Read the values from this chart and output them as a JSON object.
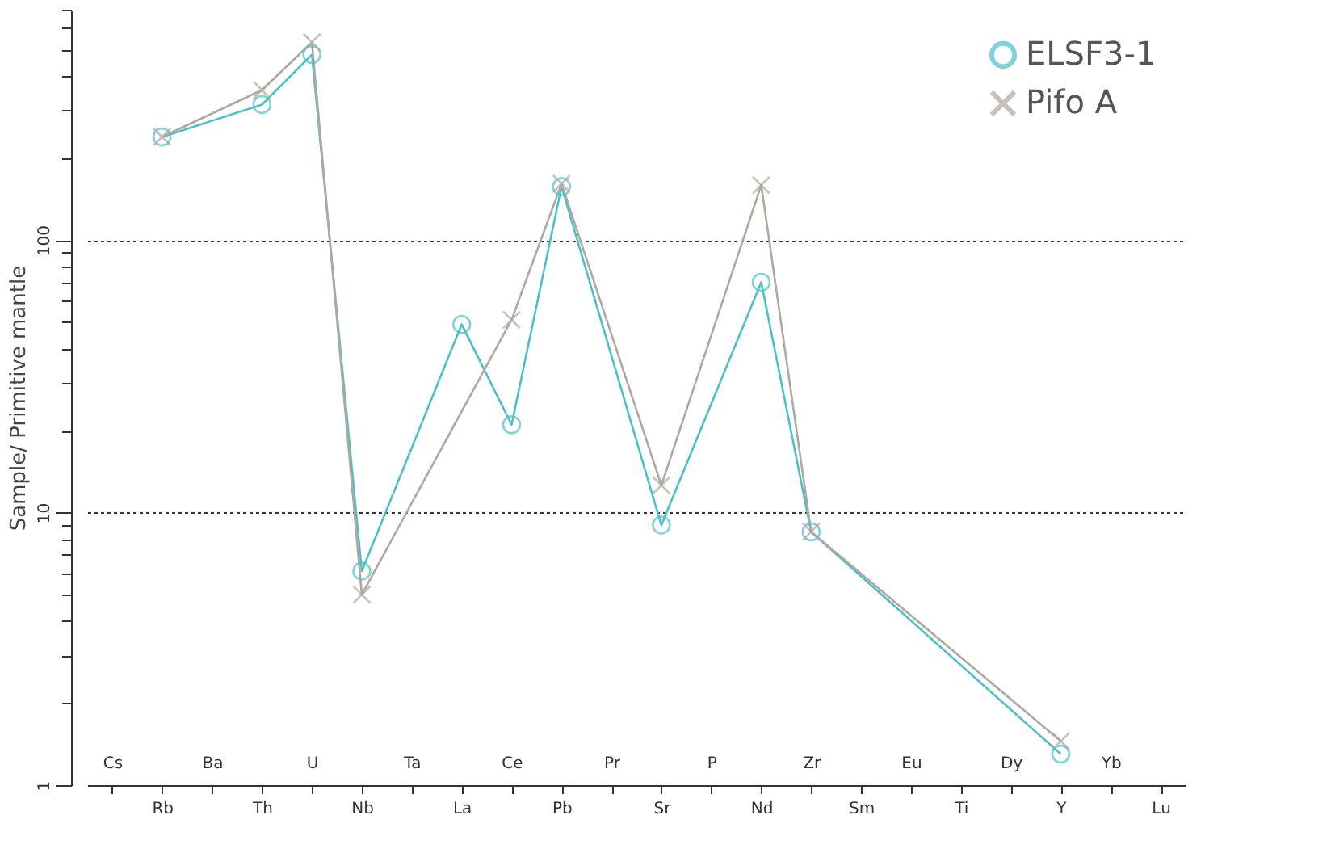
{
  "chart_data": {
    "type": "line",
    "ylabel": "Sample/ Primitive mantle",
    "log": "y",
    "ylim": [
      1,
      700
    ],
    "yticks": [
      1,
      {
        "value": 2,
        "label": null
      },
      {
        "value": 3,
        "label": null
      },
      {
        "value": 4,
        "label": null
      },
      {
        "value": 5,
        "label": null
      },
      {
        "value": 6,
        "label": null
      },
      {
        "value": 7,
        "label": null
      },
      {
        "value": 8,
        "label": null
      },
      {
        "value": 9,
        "label": null
      },
      10,
      {
        "value": 20,
        "label": null
      },
      {
        "value": 30,
        "label": null
      },
      {
        "value": 40,
        "label": null
      },
      {
        "value": 50,
        "label": null
      },
      {
        "value": 60,
        "label": null
      },
      {
        "value": 70,
        "label": null
      },
      {
        "value": 80,
        "label": null
      },
      {
        "value": 90,
        "label": null
      },
      100,
      {
        "value": 200,
        "label": null
      },
      {
        "value": 300,
        "label": null
      },
      {
        "value": 400,
        "label": null
      },
      {
        "value": 500,
        "label": null
      },
      {
        "value": 600,
        "label": null
      },
      {
        "value": 700,
        "label": null
      }
    ],
    "grid": "y",
    "legend": "top right",
    "categories": [
      "Cs",
      "Rb",
      "Ba",
      "Th",
      "U",
      "Nb",
      "Ta",
      "La",
      "Ce",
      "Pb",
      "Pr",
      "Sr",
      "P",
      "Nd",
      "Zr",
      "Sm",
      "Eu",
      "Ti",
      "Dy",
      "Y",
      "Yb",
      "Lu"
    ],
    "series": [
      {
        "name": "ELSF3-1",
        "color": "#4cc0c8",
        "marker": "circle",
        "values": [
          null,
          239,
          null,
          314,
          479,
          6.1,
          null,
          49,
          21,
          157,
          null,
          9.0,
          null,
          70,
          8.5,
          null,
          null,
          null,
          null,
          1.3,
          null,
          null
        ]
      },
      {
        "name": "Pifo A",
        "color": "#b0a8a0",
        "marker": "cross",
        "values": [
          null,
          239,
          null,
          355,
          532,
          5.0,
          null,
          null,
          51,
          161,
          null,
          12.6,
          null,
          159,
          8.5,
          null,
          null,
          null,
          null,
          1.45,
          null,
          null
        ]
      }
    ]
  }
}
